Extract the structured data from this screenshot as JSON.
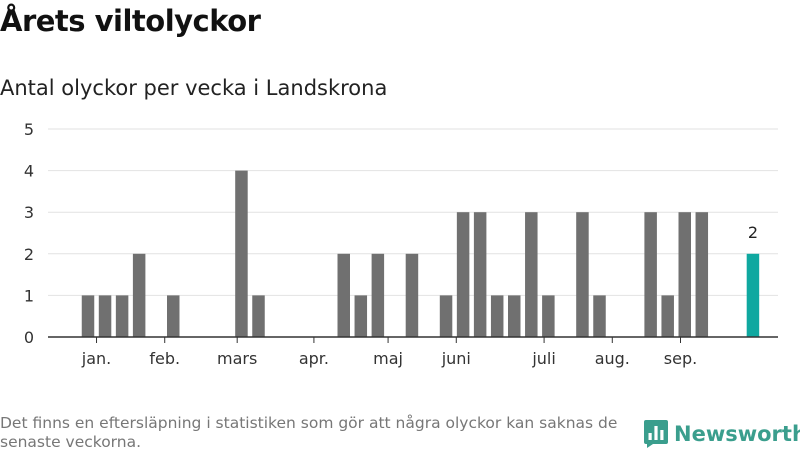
{
  "title": "Årets viltolyckor",
  "subtitle": "Antal olyckor per vecka i Landskrona",
  "footnote": "Det finns en eftersläpning i statistiken som gör att några olyckor kan saknas de senaste veckorna.",
  "brand": {
    "name": "Newsworthy",
    "icon": "bar-chart-logo-icon"
  },
  "colors": {
    "bar": "#707070",
    "highlight": "#0fa8a0",
    "grid": "#e2e2e2",
    "axis": "#333333",
    "brand": "#3a9e8d"
  },
  "chart_data": {
    "type": "bar",
    "title": "Antal olyckor per vecka i Landskrona",
    "xlabel": "",
    "ylabel": "",
    "ylim": [
      0,
      5
    ],
    "yticks": [
      0,
      1,
      2,
      3,
      4,
      5
    ],
    "grid": true,
    "weeks": [
      1,
      2,
      3,
      4,
      5,
      6,
      7,
      8,
      9,
      10,
      11,
      12,
      13,
      14,
      15,
      16,
      17,
      18,
      19,
      20,
      21,
      22,
      23,
      24,
      25,
      26,
      27,
      28,
      29,
      30,
      31,
      32,
      33,
      34,
      35,
      36,
      37,
      38,
      39,
      40
    ],
    "values": [
      1,
      1,
      1,
      2,
      0,
      1,
      0,
      0,
      0,
      4,
      1,
      0,
      0,
      0,
      0,
      2,
      1,
      2,
      0,
      2,
      0,
      1,
      3,
      3,
      1,
      1,
      3,
      1,
      0,
      3,
      1,
      0,
      0,
      3,
      1,
      3,
      3,
      0,
      0,
      2
    ],
    "highlight_week": 40,
    "highlight_label": "2",
    "month_labels": [
      {
        "label": "jan.",
        "week": 1.5
      },
      {
        "label": "feb.",
        "week": 5.5
      },
      {
        "label": "mars",
        "week": 9.75
      },
      {
        "label": "apr.",
        "week": 14.25
      },
      {
        "label": "maj",
        "week": 18.6
      },
      {
        "label": "juni",
        "week": 22.6
      },
      {
        "label": "juli",
        "week": 27.75
      },
      {
        "label": "aug.",
        "week": 31.75
      },
      {
        "label": "sep.",
        "week": 35.75
      }
    ]
  }
}
